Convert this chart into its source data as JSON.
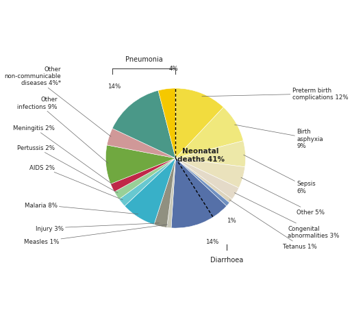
{
  "ordered_slices": [
    {
      "label": "Preterm birth\ncomplications 12%",
      "value": 12,
      "color": "#F2DC3E"
    },
    {
      "label": "Birth\nasphyxia\n9%",
      "value": 9,
      "color": "#F0E87C"
    },
    {
      "label": "Sepsis\n6%",
      "value": 6,
      "color": "#EDE8A8"
    },
    {
      "label": "Other 5%",
      "value": 5,
      "color": "#EAE2BC"
    },
    {
      "label": "Congenital\nabnormalities 3%",
      "value": 3,
      "color": "#E4DAC8"
    },
    {
      "label": "Tetanus 1%",
      "value": 1,
      "color": "#DDD4BC"
    },
    {
      "label": "1%",
      "value": 1,
      "color": "#7090C0"
    },
    {
      "label": "14%",
      "value": 14,
      "color": "#5570A8"
    },
    {
      "label": "Measles 1%",
      "value": 1,
      "color": "#C8C8B8"
    },
    {
      "label": "Injury 3%",
      "value": 3,
      "color": "#909080"
    },
    {
      "label": "Malaria 8%",
      "value": 8,
      "color": "#38B0C8"
    },
    {
      "label": "AIDS 2%",
      "value": 2,
      "color": "#68C8D0"
    },
    {
      "label": "Pertussis 2%",
      "value": 2,
      "color": "#98D098"
    },
    {
      "label": "Meningitis 2%",
      "value": 2,
      "color": "#C02848"
    },
    {
      "label": "Other\ninfections 9%",
      "value": 9,
      "color": "#70A840"
    },
    {
      "label": "Other\nnon-communicable\ndiseases 4%*",
      "value": 4,
      "color": "#D09898"
    },
    {
      "label": "14%",
      "value": 14,
      "color": "#4A9888"
    },
    {
      "label": "4%",
      "value": 4,
      "color": "#F5C800"
    }
  ],
  "center_label": "Neonatal\ndeaths 41%",
  "bg_color": "#FFFFFF",
  "annotations": [
    {
      "idx": 0,
      "text": "Preterm birth\ncomplications 12%",
      "xt": 1.3,
      "yt": 0.72,
      "ha": "left",
      "va": "center"
    },
    {
      "idx": 1,
      "text": "Birth\nasphyxia\n9%",
      "xt": 1.35,
      "yt": 0.22,
      "ha": "left",
      "va": "center"
    },
    {
      "idx": 2,
      "text": "Sepsis\n6%",
      "xt": 1.35,
      "yt": -0.32,
      "ha": "left",
      "va": "center"
    },
    {
      "idx": 3,
      "text": "Other 5%",
      "xt": 1.35,
      "yt": -0.6,
      "ha": "left",
      "va": "center"
    },
    {
      "idx": 4,
      "text": "Congenital\nabnormalities 3%",
      "xt": 1.25,
      "yt": -0.82,
      "ha": "left",
      "va": "center"
    },
    {
      "idx": 5,
      "text": "Tetanus 1%",
      "xt": 1.2,
      "yt": -0.98,
      "ha": "left",
      "va": "center"
    },
    {
      "idx": 8,
      "text": "Measles 1%",
      "xt": -1.3,
      "yt": -0.93,
      "ha": "right",
      "va": "center"
    },
    {
      "idx": 9,
      "text": "Injury 3%",
      "xt": -1.25,
      "yt": -0.78,
      "ha": "right",
      "va": "center"
    },
    {
      "idx": 10,
      "text": "Malaria 8%",
      "xt": -1.32,
      "yt": -0.52,
      "ha": "right",
      "va": "center"
    },
    {
      "idx": 11,
      "text": "AIDS 2%",
      "xt": -1.35,
      "yt": -0.1,
      "ha": "right",
      "va": "center"
    },
    {
      "idx": 12,
      "text": "Pertussis 2%",
      "xt": -1.35,
      "yt": 0.12,
      "ha": "right",
      "va": "center"
    },
    {
      "idx": 13,
      "text": "Meningitis 2%",
      "xt": -1.35,
      "yt": 0.34,
      "ha": "right",
      "va": "center"
    },
    {
      "idx": 14,
      "text": "Other\ninfections 9%",
      "xt": -1.32,
      "yt": 0.62,
      "ha": "right",
      "va": "center"
    },
    {
      "idx": 15,
      "text": "Other\nnon-communicable\ndiseases 4%*",
      "xt": -1.28,
      "yt": 0.92,
      "ha": "right",
      "va": "center"
    }
  ],
  "pneu14_idx": 16,
  "pneu4_idx": 17,
  "dia14_idx": 7,
  "dia1_idx": 6
}
